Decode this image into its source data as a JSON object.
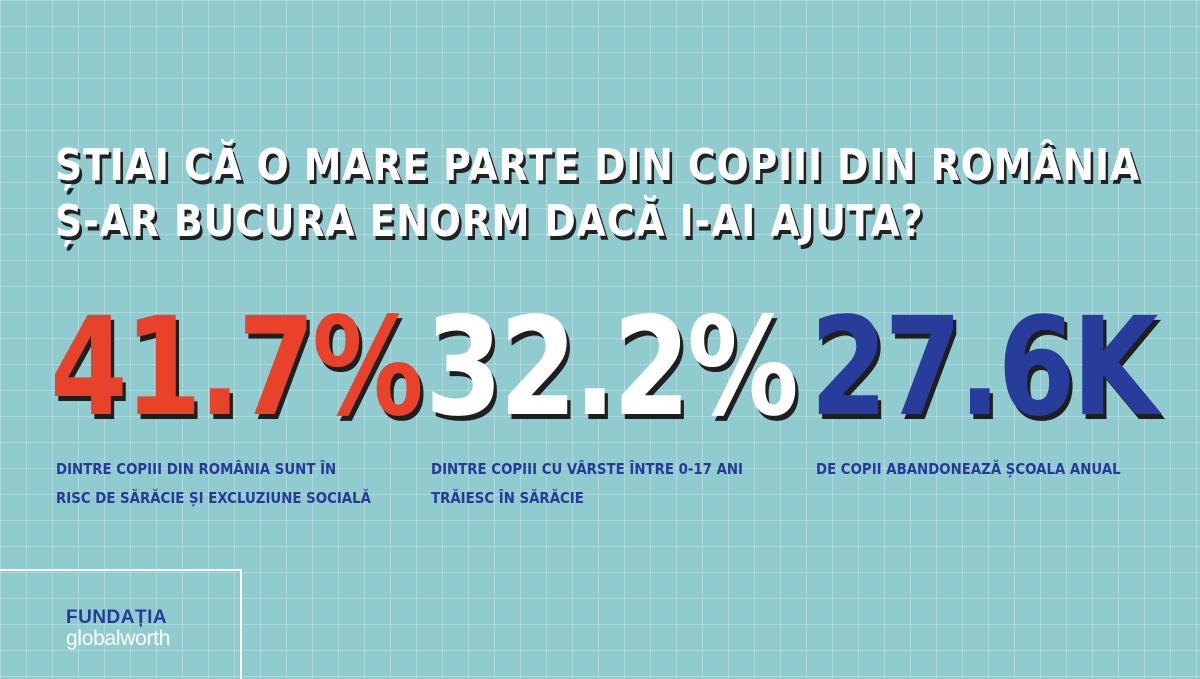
{
  "headline": {
    "line1": "ȘTIAI CĂ O MARE PARTE DIN COPIII DIN ROMÂNIA",
    "line2": "Ș-AR BUCURA ENORM DACĂ I-AI AJUTA?"
  },
  "stats": [
    {
      "value": "41.7%",
      "color": "#e8432a",
      "caption_line1": "DINTRE COPIII DIN ROMÂNIA SUNT ÎN",
      "caption_line2": "RISC DE SĂRĂCIE ȘI EXCLUZIUNE SOCIALĂ"
    },
    {
      "value": "32.2%",
      "color": "#ffffff",
      "caption_line1": "DINTRE COPIII CU VÂRSTE ÎNTRE 0-17 ANI",
      "caption_line2": "TRĂIESC ÎN SĂRĂCIE"
    },
    {
      "value": "27.6K",
      "color": "#283c9c",
      "caption_line1": "DE COPII ABANDONEAZĂ ȘCOALA ANUAL",
      "caption_line2": ""
    }
  ],
  "logo": {
    "line1": "FUNDAȚIA",
    "line2": "globalworth"
  },
  "colors": {
    "background": "#8fcbcf",
    "accent_blue": "#263a98",
    "accent_red": "#e8432a"
  }
}
